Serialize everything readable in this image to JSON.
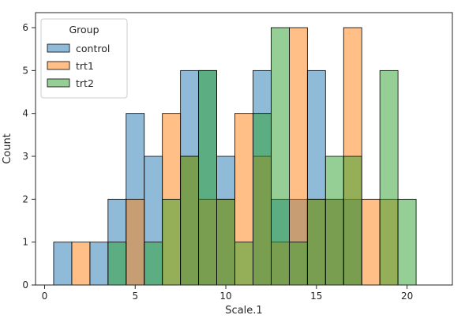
{
  "chart_data": {
    "type": "histogram",
    "xlabel": "Scale.1",
    "ylabel": "Count",
    "xlim": [
      -0.5,
      22.5
    ],
    "ylim": [
      0,
      6.35
    ],
    "xticks": [
      0,
      5,
      10,
      15,
      20
    ],
    "yticks": [
      0,
      1,
      2,
      3,
      4,
      5,
      6
    ],
    "grid": false,
    "bin_edges": [
      0.5,
      1.5,
      2.5,
      3.5,
      4.5,
      5.5,
      6.5,
      7.5,
      8.5,
      9.5,
      10.5,
      11.5,
      12.5,
      13.5,
      14.5,
      15.5,
      16.5,
      17.5,
      18.5,
      19.5,
      20.5,
      21.5
    ],
    "legend": {
      "title": "Group",
      "position": "top-left"
    },
    "series": [
      {
        "name": "control",
        "color": "#1f77b4",
        "counts": [
          1,
          0,
          1,
          2,
          4,
          3,
          0,
          5,
          5,
          3,
          0,
          5,
          2,
          2,
          5,
          2,
          2,
          0,
          0,
          0,
          0
        ]
      },
      {
        "name": "trt1",
        "color": "#ff7f0e",
        "counts": [
          0,
          1,
          0,
          0,
          2,
          0,
          4,
          3,
          2,
          2,
          4,
          3,
          1,
          6,
          2,
          2,
          6,
          2,
          2,
          0,
          0
        ]
      },
      {
        "name": "trt2",
        "color": "#2ca02c",
        "counts": [
          0,
          0,
          0,
          1,
          0,
          1,
          2,
          3,
          5,
          2,
          1,
          4,
          6,
          1,
          2,
          3,
          3,
          0,
          5,
          2,
          0
        ]
      }
    ],
    "colors": {
      "axes": "#262626",
      "bar_edge": "#000000"
    }
  }
}
